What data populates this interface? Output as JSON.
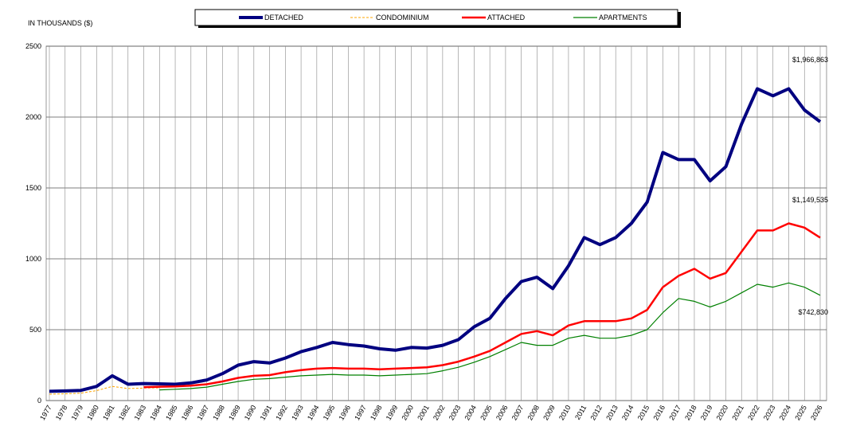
{
  "chart_data": {
    "type": "line",
    "y_label": "IN THOUSANDS ($)",
    "categories": [
      "1977",
      "1978",
      "1979",
      "1980",
      "1981",
      "1982",
      "1983",
      "1984",
      "1985",
      "1986",
      "1987",
      "1988",
      "1989",
      "1990",
      "1991",
      "1992",
      "1993",
      "1994",
      "1995",
      "1996",
      "1997",
      "1998",
      "1999",
      "2000",
      "2001",
      "2002",
      "2003",
      "2004",
      "2005",
      "2006",
      "2007",
      "2008",
      "2009",
      "2010",
      "2011",
      "2012",
      "2013",
      "2014",
      "2015",
      "2016",
      "2017",
      "2018",
      "2019",
      "2020",
      "2021",
      "2022",
      "2023",
      "2024",
      "2025",
      "2026"
    ],
    "series": [
      {
        "name": "DETACHED",
        "color": "#000080",
        "width": 4,
        "dashed": false,
        "values": [
          65,
          68,
          72,
          100,
          175,
          115,
          120,
          118,
          115,
          125,
          145,
          190,
          250,
          275,
          265,
          300,
          345,
          375,
          410,
          395,
          385,
          365,
          355,
          375,
          370,
          390,
          430,
          520,
          580,
          720,
          840,
          870,
          790,
          950,
          1150,
          1100,
          1150,
          1250,
          1400,
          1750,
          1700,
          1700,
          1550,
          1650,
          1950,
          2200,
          2150,
          2200,
          2050,
          1966.863
        ]
      },
      {
        "name": "CONDOMINIUM",
        "color": "#ffa500",
        "width": 1,
        "dashed": true,
        "values": [
          45,
          48,
          52,
          70,
          100,
          85,
          88,
          90,
          null,
          null,
          null,
          null,
          null,
          null,
          null,
          null,
          null,
          null,
          null,
          null,
          null,
          null,
          null,
          null,
          null,
          null,
          null,
          null,
          null,
          null,
          null,
          null,
          null,
          null,
          null,
          null,
          null,
          null,
          null,
          null,
          null,
          null,
          null,
          null,
          null,
          null,
          null,
          null,
          null,
          null
        ]
      },
      {
        "name": "ATTACHED",
        "color": "#ff0000",
        "width": 2.5,
        "dashed": false,
        "values": [
          null,
          null,
          null,
          null,
          null,
          null,
          95,
          98,
          100,
          105,
          115,
          135,
          160,
          175,
          180,
          200,
          215,
          225,
          230,
          225,
          225,
          220,
          225,
          230,
          235,
          250,
          275,
          310,
          350,
          410,
          470,
          490,
          460,
          530,
          560,
          560,
          560,
          580,
          640,
          800,
          880,
          930,
          860,
          900,
          1050,
          1200,
          1200,
          1250,
          1220,
          1149.535
        ]
      },
      {
        "name": "APARTMENTS",
        "color": "#008000",
        "width": 1.2,
        "dashed": false,
        "values": [
          null,
          null,
          null,
          null,
          null,
          null,
          null,
          75,
          80,
          85,
          95,
          115,
          135,
          150,
          155,
          165,
          175,
          180,
          185,
          180,
          180,
          175,
          180,
          185,
          190,
          210,
          235,
          270,
          310,
          360,
          410,
          390,
          390,
          440,
          460,
          440,
          440,
          460,
          500,
          620,
          720,
          700,
          660,
          700,
          760,
          820,
          800,
          830,
          800,
          742.83
        ]
      }
    ],
    "annotations": [
      "$1,966,863",
      "$1,149,535",
      "$742,830"
    ],
    "ylim": [
      0,
      2500
    ],
    "yticks": [
      0,
      500,
      1000,
      1500,
      2000,
      2500
    ],
    "grid": true
  }
}
